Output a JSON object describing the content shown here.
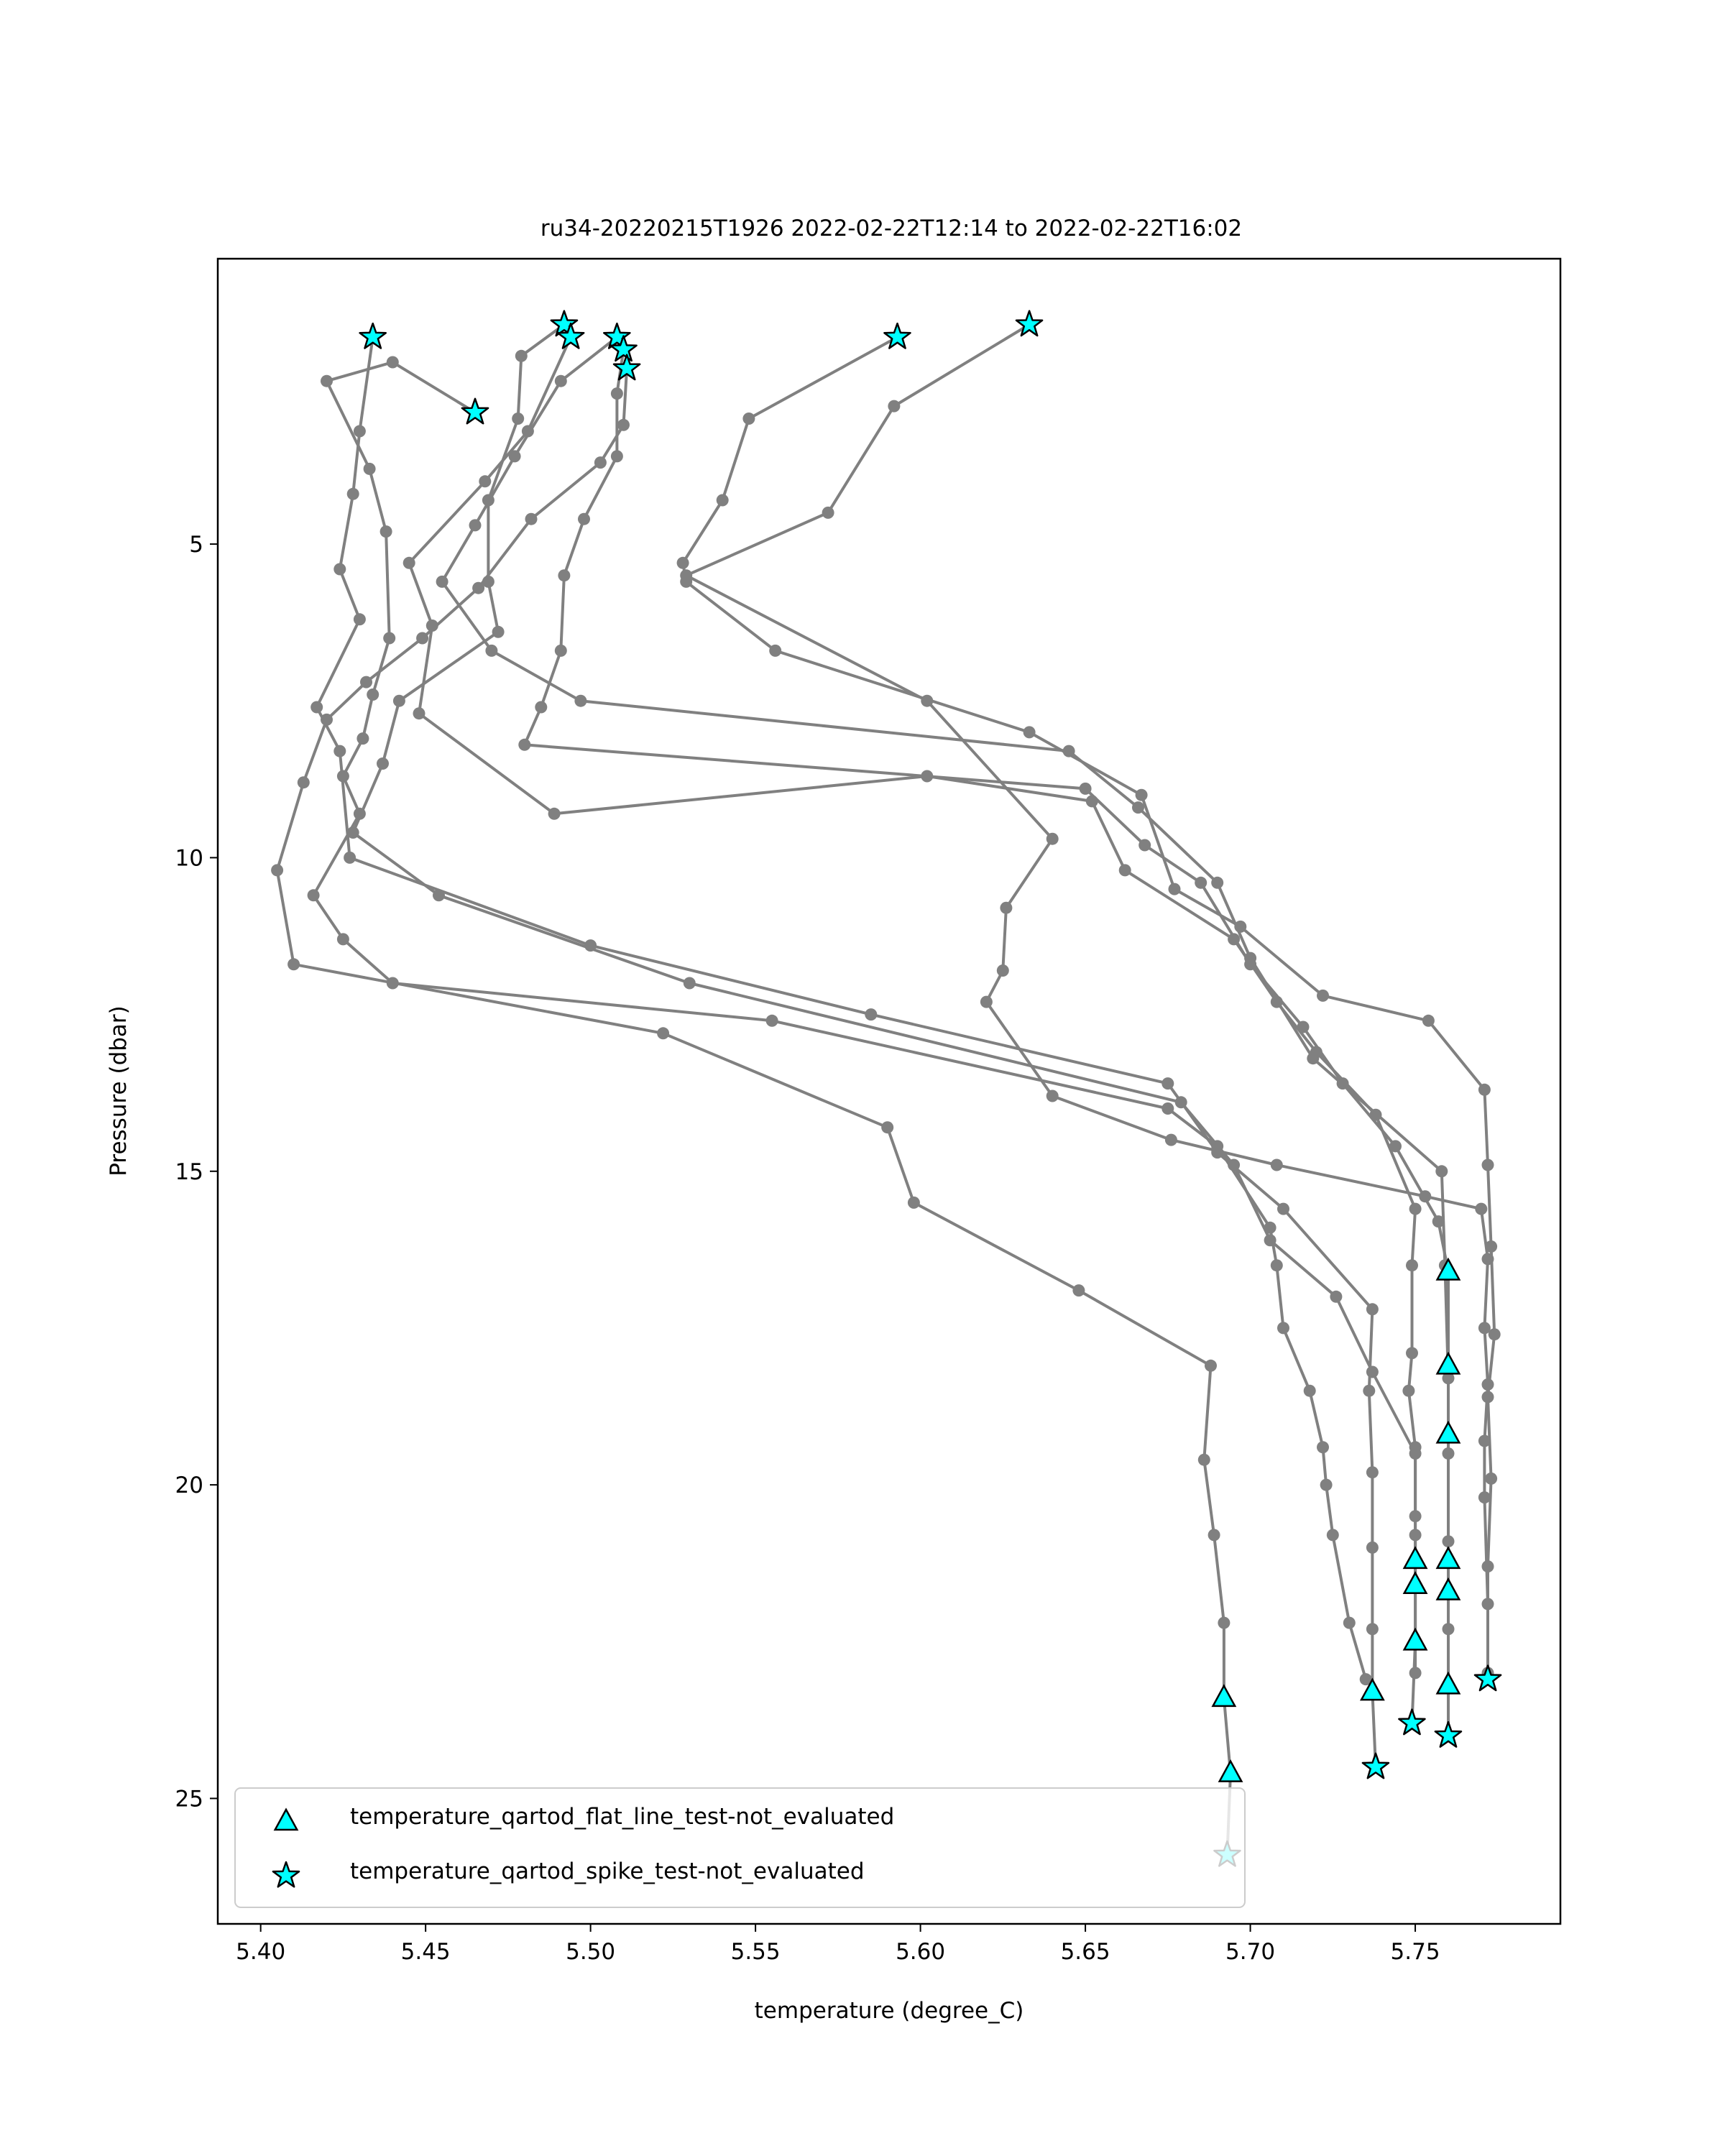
{
  "chart_data": {
    "type": "line",
    "title": "ru34-20220215T1926 2022-02-22T12:14 to 2022-02-22T16:02",
    "xlabel": "temperature (degree_C)",
    "ylabel": "Pressure (dbar)",
    "xlim": [
      5.387,
      5.794
    ],
    "ylim": [
      27.0,
      0.45
    ],
    "y_inverted": true,
    "xticks": [
      "5.40",
      "5.45",
      "5.50",
      "5.55",
      "5.60",
      "5.65",
      "5.70",
      "5.75"
    ],
    "xtick_values": [
      5.4,
      5.45,
      5.5,
      5.55,
      5.6,
      5.65,
      5.7,
      5.75
    ],
    "yticks": [
      "5",
      "10",
      "15",
      "20",
      "25"
    ],
    "ytick_values": [
      5,
      10,
      15,
      20,
      25
    ],
    "grid": false,
    "legend_position": "lower-left",
    "colors": {
      "line": "#808080",
      "marker_fill": "#00ffff",
      "marker_edge": "#000000",
      "axes": "#000000"
    },
    "legend": [
      {
        "label": "temperature_qartod_flat_line_test-not_evaluated",
        "marker": "triangle"
      },
      {
        "label": "temperature_qartod_spike_test-not_evaluated",
        "marker": "star"
      }
    ],
    "series": [
      {
        "points": [
          [
            5.434,
            1.7
          ],
          [
            5.43,
            3.2
          ],
          [
            5.428,
            4.2
          ],
          [
            5.424,
            5.4
          ],
          [
            5.43,
            6.2
          ],
          [
            5.417,
            7.6
          ],
          [
            5.424,
            8.3
          ],
          [
            5.427,
            10.0
          ],
          [
            5.5,
            11.4
          ],
          [
            5.585,
            12.5
          ],
          [
            5.675,
            13.6
          ],
          [
            5.69,
            14.7
          ],
          [
            5.71,
            15.6
          ],
          [
            5.737,
            17.2
          ],
          [
            5.736,
            18.5
          ],
          [
            5.737,
            19.8
          ],
          [
            5.737,
            21.0
          ],
          [
            5.737,
            22.3
          ],
          [
            5.737,
            23.3
          ],
          [
            5.738,
            24.5
          ]
        ],
        "flat": [
          [
            5.737,
            23.3
          ]
        ],
        "spike": [
          [
            5.434,
            1.7
          ],
          [
            5.738,
            24.5
          ]
        ]
      },
      {
        "points": [
          [
            5.492,
            1.5
          ],
          [
            5.479,
            2.0
          ],
          [
            5.478,
            3.0
          ],
          [
            5.469,
            4.3
          ],
          [
            5.469,
            5.6
          ],
          [
            5.472,
            6.4
          ],
          [
            5.442,
            7.5
          ],
          [
            5.437,
            8.5
          ],
          [
            5.428,
            9.6
          ],
          [
            5.454,
            10.6
          ],
          [
            5.53,
            12.0
          ],
          [
            5.679,
            13.9
          ],
          [
            5.695,
            14.9
          ],
          [
            5.706,
            16.1
          ],
          [
            5.726,
            17.0
          ],
          [
            5.737,
            18.2
          ],
          [
            5.75,
            19.5
          ],
          [
            5.75,
            20.8
          ],
          [
            5.75,
            21.6
          ],
          [
            5.75,
            22.5
          ],
          [
            5.749,
            23.8
          ]
        ],
        "flat": [
          [
            5.75,
            21.6
          ],
          [
            5.75,
            22.5
          ]
        ],
        "spike": [
          [
            5.492,
            1.5
          ],
          [
            5.749,
            23.8
          ]
        ]
      },
      {
        "points": [
          [
            5.494,
            1.7
          ],
          [
            5.481,
            3.2
          ],
          [
            5.468,
            4.0
          ],
          [
            5.445,
            5.3
          ],
          [
            5.452,
            6.3
          ],
          [
            5.448,
            7.7
          ],
          [
            5.489,
            9.3
          ],
          [
            5.602,
            8.7
          ],
          [
            5.652,
            9.1
          ],
          [
            5.662,
            10.2
          ],
          [
            5.695,
            11.3
          ],
          [
            5.708,
            12.3
          ],
          [
            5.72,
            13.1
          ],
          [
            5.738,
            14.1
          ],
          [
            5.75,
            15.6
          ],
          [
            5.749,
            16.5
          ],
          [
            5.749,
            17.9
          ],
          [
            5.748,
            18.5
          ],
          [
            5.75,
            19.4
          ],
          [
            5.75,
            20.5
          ],
          [
            5.75,
            21.2
          ],
          [
            5.75,
            23.0
          ]
        ],
        "flat": [
          [
            5.75,
            21.2
          ]
        ],
        "spike": [
          [
            5.494,
            1.7
          ]
        ]
      },
      {
        "points": [
          [
            5.508,
            1.7
          ],
          [
            5.491,
            2.4
          ],
          [
            5.477,
            3.6
          ],
          [
            5.465,
            4.7
          ],
          [
            5.455,
            5.6
          ],
          [
            5.47,
            6.7
          ],
          [
            5.497,
            7.5
          ],
          [
            5.645,
            8.3
          ],
          [
            5.666,
            9.2
          ],
          [
            5.69,
            10.4
          ],
          [
            5.7,
            11.6
          ],
          [
            5.719,
            13.2
          ],
          [
            5.758,
            15.0
          ],
          [
            5.759,
            16.5
          ],
          [
            5.76,
            18.3
          ],
          [
            5.76,
            19.5
          ],
          [
            5.76,
            20.9
          ],
          [
            5.76,
            22.3
          ],
          [
            5.76,
            23.2
          ],
          [
            5.76,
            24.0
          ]
        ],
        "flat": [
          [
            5.76,
            23.2
          ]
        ],
        "spike": [
          [
            5.508,
            1.7
          ],
          [
            5.76,
            24.0
          ]
        ]
      },
      {
        "points": [
          [
            5.465,
            2.9
          ],
          [
            5.44,
            2.1
          ],
          [
            5.42,
            2.4
          ],
          [
            5.433,
            3.8
          ],
          [
            5.438,
            4.8
          ],
          [
            5.439,
            6.5
          ],
          [
            5.434,
            7.4
          ],
          [
            5.431,
            8.1
          ],
          [
            5.425,
            8.7
          ],
          [
            5.43,
            9.3
          ],
          [
            5.416,
            10.6
          ],
          [
            5.425,
            11.3
          ],
          [
            5.44,
            12.0
          ],
          [
            5.555,
            12.6
          ],
          [
            5.675,
            14.0
          ],
          [
            5.69,
            14.6
          ],
          [
            5.706,
            15.9
          ],
          [
            5.708,
            16.5
          ],
          [
            5.71,
            17.5
          ],
          [
            5.718,
            18.5
          ],
          [
            5.722,
            19.4
          ],
          [
            5.723,
            20.0
          ],
          [
            5.725,
            20.8
          ],
          [
            5.73,
            22.2
          ],
          [
            5.735,
            23.1
          ]
        ],
        "flat": [],
        "spike": [
          [
            5.465,
            2.9
          ]
        ]
      },
      {
        "points": [
          [
            5.51,
            1.9
          ],
          [
            5.508,
            2.6
          ],
          [
            5.508,
            3.6
          ],
          [
            5.498,
            4.6
          ],
          [
            5.492,
            5.5
          ],
          [
            5.491,
            6.7
          ],
          [
            5.485,
            7.6
          ],
          [
            5.48,
            8.2
          ],
          [
            5.65,
            8.9
          ],
          [
            5.668,
            9.8
          ],
          [
            5.685,
            10.4
          ],
          [
            5.7,
            11.7
          ],
          [
            5.716,
            12.7
          ],
          [
            5.728,
            13.6
          ],
          [
            5.744,
            14.6
          ],
          [
            5.757,
            15.8
          ],
          [
            5.76,
            16.6
          ],
          [
            5.76,
            18.1
          ],
          [
            5.76,
            19.2
          ],
          [
            5.76,
            21.2
          ],
          [
            5.76,
            21.7
          ]
        ],
        "flat": [
          [
            5.76,
            16.6
          ],
          [
            5.76,
            18.1
          ],
          [
            5.76,
            19.2
          ],
          [
            5.76,
            21.2
          ],
          [
            5.76,
            21.7
          ]
        ],
        "spike": [
          [
            5.51,
            1.9
          ]
        ]
      },
      {
        "points": [
          [
            5.511,
            2.2
          ],
          [
            5.51,
            3.1
          ],
          [
            5.503,
            3.7
          ],
          [
            5.482,
            4.6
          ],
          [
            5.466,
            5.7
          ],
          [
            5.449,
            6.5
          ],
          [
            5.432,
            7.2
          ],
          [
            5.42,
            7.8
          ],
          [
            5.413,
            8.8
          ],
          [
            5.405,
            10.2
          ],
          [
            5.41,
            11.7
          ],
          [
            5.522,
            12.8
          ],
          [
            5.59,
            14.3
          ],
          [
            5.598,
            15.5
          ],
          [
            5.648,
            16.9
          ],
          [
            5.688,
            18.1
          ],
          [
            5.686,
            19.6
          ],
          [
            5.689,
            20.8
          ],
          [
            5.692,
            22.2
          ],
          [
            5.692,
            23.4
          ],
          [
            5.694,
            24.6
          ],
          [
            5.693,
            25.9
          ]
        ],
        "flat": [
          [
            5.692,
            23.4
          ],
          [
            5.694,
            24.6
          ]
        ],
        "spike": [
          [
            5.511,
            2.2
          ],
          [
            5.693,
            25.9
          ]
        ]
      },
      {
        "points": [
          [
            5.593,
            1.7
          ],
          [
            5.548,
            3.0
          ],
          [
            5.54,
            4.3
          ],
          [
            5.528,
            5.3
          ],
          [
            5.529,
            5.6
          ],
          [
            5.556,
            6.7
          ],
          [
            5.633,
            8.0
          ],
          [
            5.667,
            9.0
          ],
          [
            5.677,
            10.5
          ],
          [
            5.697,
            11.1
          ],
          [
            5.722,
            12.2
          ],
          [
            5.754,
            12.6
          ],
          [
            5.771,
            13.7
          ],
          [
            5.772,
            14.9
          ],
          [
            5.773,
            16.2
          ],
          [
            5.774,
            17.6
          ],
          [
            5.772,
            18.6
          ],
          [
            5.773,
            19.9
          ],
          [
            5.772,
            21.3
          ],
          [
            5.772,
            23.0
          ]
        ],
        "flat": [],
        "spike": [
          [
            5.593,
            1.7
          ]
        ]
      },
      {
        "points": [
          [
            5.633,
            1.5
          ],
          [
            5.592,
            2.8
          ],
          [
            5.572,
            4.5
          ],
          [
            5.529,
            5.5
          ],
          [
            5.602,
            7.5
          ],
          [
            5.64,
            9.7
          ],
          [
            5.626,
            10.8
          ],
          [
            5.625,
            11.8
          ],
          [
            5.62,
            12.3
          ],
          [
            5.64,
            13.8
          ],
          [
            5.676,
            14.5
          ],
          [
            5.708,
            14.9
          ],
          [
            5.753,
            15.4
          ],
          [
            5.77,
            15.6
          ],
          [
            5.772,
            16.4
          ],
          [
            5.771,
            17.5
          ],
          [
            5.772,
            18.4
          ],
          [
            5.771,
            19.3
          ],
          [
            5.771,
            20.2
          ],
          [
            5.772,
            21.9
          ],
          [
            5.772,
            23.1
          ]
        ],
        "flat": [],
        "spike": [
          [
            5.633,
            1.5
          ],
          [
            5.772,
            23.1
          ]
        ]
      }
    ]
  }
}
